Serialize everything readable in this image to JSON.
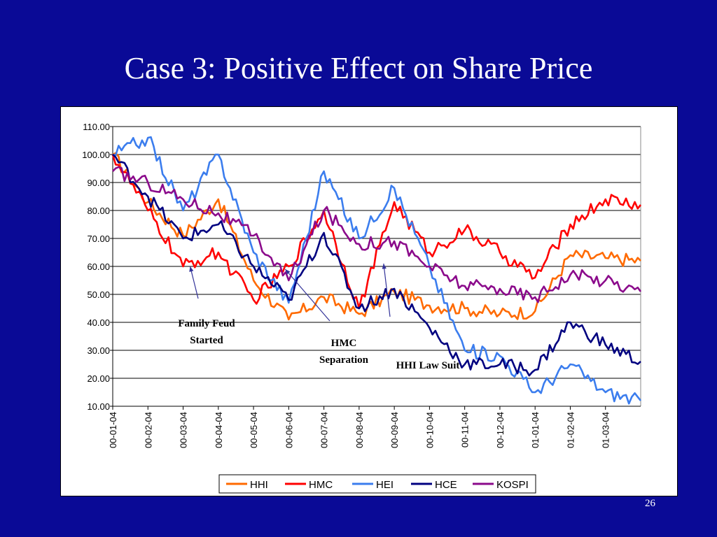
{
  "slide": {
    "title": "Case 3: Positive Effect on Share Price",
    "page_number": "26"
  },
  "chart_data": {
    "type": "line",
    "ylim": [
      10,
      110
    ],
    "yticks": [
      "110.00",
      "100.00",
      "90.00",
      "80.00",
      "70.00",
      "60.00",
      "50.00",
      "40.00",
      "30.00",
      "20.00",
      "10.00"
    ],
    "grid": "horizontal",
    "legend_position": "bottom",
    "x": [
      "00-01-04",
      "00-02-04",
      "00-03-04",
      "00-04-04",
      "00-05-04",
      "00-06-04",
      "00-07-04",
      "00-08-04",
      "00-09-04",
      "00-10-04",
      "00-11-04",
      "00-12-04",
      "01-01-04",
      "01-02-04",
      "01-03-04",
      "01-03-20"
    ],
    "xtick_labels": [
      "00-01-04",
      "00-02-04",
      "00-03-04",
      "00-04-04",
      "00-05-04",
      "00-06-04",
      "00-07-04",
      "00-08-04",
      "00-09-04",
      "00-10-04",
      "00-11-04",
      "00-12-04",
      "01-01-04",
      "01-02-04",
      "01-03-04"
    ],
    "series": [
      {
        "name": "HHI",
        "color": "#ff6a00",
        "values": [
          100,
          83,
          71,
          84,
          55,
          41,
          49,
          43,
          51,
          46,
          45,
          43,
          44,
          64,
          63,
          62
        ]
      },
      {
        "name": "HMC",
        "color": "#ff0000",
        "values": [
          100,
          80,
          60,
          65,
          48,
          60,
          80,
          45,
          83,
          65,
          73,
          65,
          56,
          75,
          84,
          82
        ]
      },
      {
        "name": "HEI",
        "color": "#3b7dee",
        "values": [
          100,
          106,
          80,
          100,
          65,
          47,
          94,
          70,
          88,
          60,
          30,
          28,
          15,
          25,
          15,
          12
        ]
      },
      {
        "name": "HCE",
        "color": "#000080",
        "values": [
          100,
          85,
          70,
          75,
          60,
          48,
          72,
          45,
          52,
          38,
          25,
          25,
          23,
          40,
          32,
          26
        ]
      },
      {
        "name": "KOSPI",
        "color": "#8b0a8b",
        "values": [
          94,
          90,
          84,
          79,
          71,
          55,
          80,
          68,
          69,
          60,
          53,
          52,
          49,
          57,
          55,
          51
        ]
      }
    ],
    "annotations": [
      {
        "text_lines": [
          "Family Feud",
          "Started"
        ],
        "target": {
          "x": "00-03-04",
          "y": 60
        }
      },
      {
        "text_lines": [
          "HMC",
          "Separation"
        ],
        "target": {
          "x": "00-06-04",
          "y": 59
        }
      },
      {
        "text_lines": [
          "HHI Law Suit"
        ],
        "target": {
          "x": "00-08-04",
          "y": 61
        }
      }
    ]
  }
}
